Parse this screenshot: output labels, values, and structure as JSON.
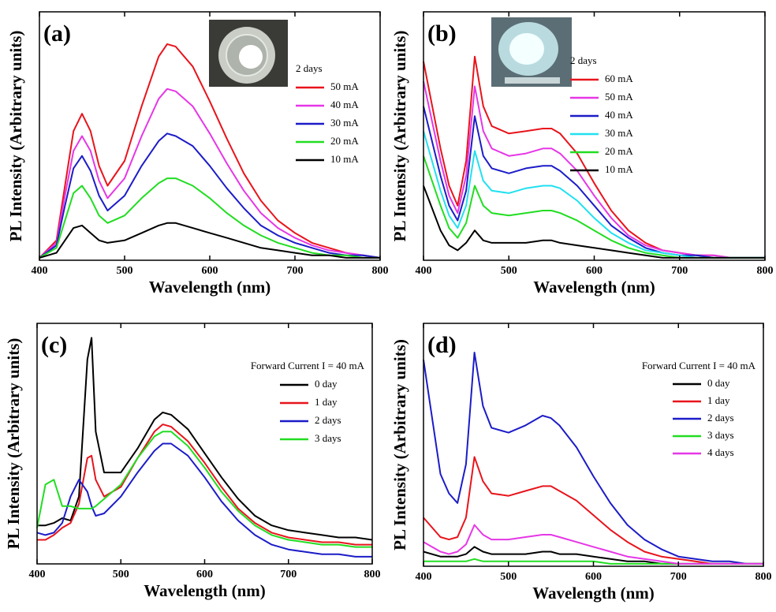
{
  "chart_data": [
    {
      "type": "line",
      "label": "(a)",
      "xlabel": "Wavelength (nm)",
      "ylabel": "PL Intensity (Arbitrary units)",
      "legend_title": "2 days",
      "x": [
        400,
        420,
        430,
        440,
        450,
        460,
        470,
        480,
        500,
        520,
        540,
        550,
        560,
        580,
        600,
        620,
        640,
        660,
        680,
        700,
        720,
        740,
        760,
        780,
        800
      ],
      "xlim": [
        400,
        800
      ],
      "xticks": [
        400,
        500,
        600,
        700,
        800
      ],
      "ylim": [
        0,
        1
      ],
      "series": [
        {
          "name": "50 mA",
          "color": "#e8141c",
          "values": [
            0.01,
            0.08,
            0.3,
            0.52,
            0.59,
            0.52,
            0.38,
            0.3,
            0.4,
            0.62,
            0.82,
            0.87,
            0.86,
            0.78,
            0.64,
            0.49,
            0.35,
            0.24,
            0.16,
            0.11,
            0.07,
            0.05,
            0.03,
            0.02,
            0.01
          ]
        },
        {
          "name": "40 mA",
          "color": "#e637e6",
          "values": [
            0.01,
            0.07,
            0.26,
            0.44,
            0.5,
            0.44,
            0.32,
            0.25,
            0.33,
            0.5,
            0.65,
            0.69,
            0.68,
            0.62,
            0.51,
            0.39,
            0.28,
            0.19,
            0.13,
            0.09,
            0.06,
            0.04,
            0.03,
            0.02,
            0.01
          ]
        },
        {
          "name": "30 mA",
          "color": "#1c1cc8",
          "values": [
            0.01,
            0.06,
            0.22,
            0.37,
            0.42,
            0.36,
            0.26,
            0.2,
            0.26,
            0.38,
            0.48,
            0.51,
            0.5,
            0.46,
            0.38,
            0.29,
            0.21,
            0.14,
            0.1,
            0.07,
            0.05,
            0.03,
            0.02,
            0.02,
            0.01
          ]
        },
        {
          "name": "20 mA",
          "color": "#22dd22",
          "values": [
            0.01,
            0.05,
            0.16,
            0.27,
            0.3,
            0.25,
            0.18,
            0.15,
            0.18,
            0.25,
            0.31,
            0.33,
            0.33,
            0.3,
            0.25,
            0.19,
            0.14,
            0.1,
            0.07,
            0.05,
            0.03,
            0.02,
            0.02,
            0.01,
            0.01
          ]
        },
        {
          "name": "10 mA",
          "color": "#000000",
          "values": [
            0.01,
            0.03,
            0.08,
            0.13,
            0.14,
            0.11,
            0.08,
            0.07,
            0.08,
            0.11,
            0.14,
            0.15,
            0.15,
            0.13,
            0.11,
            0.09,
            0.07,
            0.05,
            0.04,
            0.03,
            0.02,
            0.02,
            0.01,
            0.01,
            0.01
          ]
        }
      ]
    },
    {
      "type": "line",
      "label": "(b)",
      "xlabel": "Wavelength (nm)",
      "ylabel": "PL Intensity (Arbitrary units)",
      "legend_title": "2 days",
      "x": [
        400,
        420,
        430,
        440,
        450,
        460,
        470,
        480,
        500,
        520,
        540,
        550,
        560,
        580,
        600,
        620,
        640,
        660,
        680,
        700,
        720,
        740,
        760,
        780,
        800
      ],
      "xlim": [
        400,
        800
      ],
      "xticks": [
        400,
        500,
        600,
        700,
        800
      ],
      "ylim": [
        0,
        1
      ],
      "series": [
        {
          "name": "60 mA",
          "color": "#e8141c",
          "values": [
            0.8,
            0.45,
            0.3,
            0.22,
            0.4,
            0.82,
            0.62,
            0.54,
            0.51,
            0.52,
            0.53,
            0.53,
            0.51,
            0.43,
            0.31,
            0.2,
            0.12,
            0.07,
            0.04,
            0.03,
            0.02,
            0.02,
            0.01,
            0.01,
            0.01
          ]
        },
        {
          "name": "50 mA",
          "color": "#e637e6",
          "values": [
            0.72,
            0.4,
            0.26,
            0.19,
            0.34,
            0.7,
            0.52,
            0.45,
            0.42,
            0.43,
            0.45,
            0.45,
            0.43,
            0.36,
            0.26,
            0.17,
            0.1,
            0.06,
            0.04,
            0.03,
            0.02,
            0.02,
            0.01,
            0.01,
            0.01
          ]
        },
        {
          "name": "40 mA",
          "color": "#1c1cc8",
          "values": [
            0.62,
            0.34,
            0.22,
            0.16,
            0.28,
            0.58,
            0.42,
            0.37,
            0.35,
            0.37,
            0.38,
            0.38,
            0.36,
            0.3,
            0.22,
            0.14,
            0.09,
            0.05,
            0.03,
            0.02,
            0.02,
            0.01,
            0.01,
            0.01,
            0.01
          ]
        },
        {
          "name": "30 mA",
          "color": "#22e0f0",
          "values": [
            0.52,
            0.28,
            0.18,
            0.13,
            0.22,
            0.44,
            0.32,
            0.28,
            0.27,
            0.29,
            0.3,
            0.3,
            0.29,
            0.24,
            0.17,
            0.11,
            0.07,
            0.04,
            0.03,
            0.02,
            0.01,
            0.01,
            0.01,
            0.01,
            0.01
          ]
        },
        {
          "name": "20 mA",
          "color": "#22dd22",
          "values": [
            0.42,
            0.22,
            0.13,
            0.09,
            0.15,
            0.3,
            0.22,
            0.19,
            0.18,
            0.19,
            0.2,
            0.2,
            0.19,
            0.16,
            0.12,
            0.08,
            0.05,
            0.03,
            0.02,
            0.01,
            0.01,
            0.01,
            0.01,
            0.01,
            0.01
          ]
        },
        {
          "name": "10 mA",
          "color": "#000000",
          "values": [
            0.3,
            0.12,
            0.06,
            0.04,
            0.07,
            0.12,
            0.08,
            0.07,
            0.07,
            0.07,
            0.08,
            0.08,
            0.07,
            0.06,
            0.05,
            0.04,
            0.03,
            0.02,
            0.01,
            0.01,
            0.01,
            0.01,
            0.01,
            0.01,
            0.01
          ]
        }
      ]
    },
    {
      "type": "line",
      "label": "(c)",
      "xlabel": "Wavelength (nm)",
      "ylabel": "PL Intensity (Arbitrary units)",
      "legend_title": "Forward Current I = 40 mA",
      "x": [
        400,
        410,
        420,
        430,
        440,
        450,
        460,
        465,
        470,
        480,
        500,
        520,
        540,
        550,
        560,
        580,
        600,
        620,
        640,
        660,
        680,
        700,
        720,
        740,
        760,
        780,
        800
      ],
      "xlim": [
        400,
        800
      ],
      "xticks": [
        400,
        500,
        600,
        700,
        800
      ],
      "ylim": [
        0,
        1
      ],
      "series": [
        {
          "name": "0 day",
          "color": "#000000",
          "values": [
            0.16,
            0.16,
            0.17,
            0.19,
            0.18,
            0.28,
            0.85,
            0.94,
            0.55,
            0.38,
            0.38,
            0.48,
            0.6,
            0.63,
            0.62,
            0.56,
            0.46,
            0.36,
            0.27,
            0.2,
            0.16,
            0.14,
            0.13,
            0.12,
            0.11,
            0.11,
            0.1
          ]
        },
        {
          "name": "1 day",
          "color": "#e8141c",
          "values": [
            0.1,
            0.1,
            0.12,
            0.15,
            0.17,
            0.25,
            0.44,
            0.45,
            0.35,
            0.28,
            0.32,
            0.44,
            0.55,
            0.58,
            0.57,
            0.51,
            0.42,
            0.32,
            0.23,
            0.17,
            0.13,
            0.11,
            0.1,
            0.09,
            0.09,
            0.08,
            0.08
          ]
        },
        {
          "name": "2 days",
          "color": "#1c1cc8",
          "values": [
            0.13,
            0.12,
            0.13,
            0.17,
            0.28,
            0.35,
            0.3,
            0.24,
            0.2,
            0.21,
            0.28,
            0.38,
            0.47,
            0.5,
            0.5,
            0.45,
            0.36,
            0.26,
            0.18,
            0.12,
            0.08,
            0.06,
            0.05,
            0.04,
            0.04,
            0.03,
            0.03
          ]
        },
        {
          "name": "3 days",
          "color": "#22dd22",
          "values": [
            0.15,
            0.33,
            0.35,
            0.24,
            0.24,
            0.23,
            0.23,
            0.23,
            0.24,
            0.27,
            0.33,
            0.44,
            0.53,
            0.55,
            0.55,
            0.49,
            0.4,
            0.3,
            0.22,
            0.16,
            0.12,
            0.1,
            0.09,
            0.08,
            0.08,
            0.07,
            0.07
          ]
        }
      ]
    },
    {
      "type": "line",
      "label": "(d)",
      "xlabel": "Wavelength (nm)",
      "ylabel": "PL Intensity (Arbitrary units)",
      "legend_title": "Forward Current I = 40 mA",
      "x": [
        400,
        420,
        430,
        440,
        450,
        460,
        470,
        480,
        500,
        520,
        540,
        550,
        560,
        580,
        600,
        620,
        640,
        660,
        680,
        700,
        720,
        740,
        760,
        780,
        800
      ],
      "xlim": [
        400,
        800
      ],
      "xticks": [
        400,
        500,
        600,
        700,
        800
      ],
      "ylim": [
        0,
        1
      ],
      "series": [
        {
          "name": "0 day",
          "color": "#000000",
          "values": [
            0.06,
            0.04,
            0.04,
            0.04,
            0.05,
            0.08,
            0.06,
            0.05,
            0.05,
            0.05,
            0.06,
            0.06,
            0.05,
            0.05,
            0.04,
            0.03,
            0.02,
            0.02,
            0.01,
            0.01,
            0.01,
            0.01,
            0.01,
            0.01,
            0.01
          ]
        },
        {
          "name": "1 day",
          "color": "#e8141c",
          "values": [
            0.2,
            0.12,
            0.11,
            0.12,
            0.2,
            0.45,
            0.35,
            0.3,
            0.29,
            0.31,
            0.33,
            0.33,
            0.31,
            0.27,
            0.21,
            0.15,
            0.1,
            0.06,
            0.04,
            0.03,
            0.02,
            0.01,
            0.01,
            0.01,
            0.01
          ]
        },
        {
          "name": "2 days",
          "color": "#1c1cc8",
          "values": [
            0.85,
            0.38,
            0.3,
            0.26,
            0.42,
            0.88,
            0.66,
            0.57,
            0.55,
            0.58,
            0.62,
            0.61,
            0.58,
            0.49,
            0.37,
            0.26,
            0.17,
            0.11,
            0.07,
            0.04,
            0.03,
            0.02,
            0.02,
            0.01,
            0.01
          ]
        },
        {
          "name": "3 days",
          "color": "#22dd22",
          "values": [
            0.02,
            0.02,
            0.02,
            0.02,
            0.02,
            0.03,
            0.02,
            0.02,
            0.02,
            0.02,
            0.02,
            0.02,
            0.02,
            0.02,
            0.02,
            0.01,
            0.01,
            0.01,
            0.01,
            0.01,
            0.01,
            0.01,
            0.01,
            0.01,
            0.01
          ]
        },
        {
          "name": "4 days",
          "color": "#e637e6",
          "values": [
            0.1,
            0.06,
            0.05,
            0.06,
            0.09,
            0.17,
            0.13,
            0.11,
            0.11,
            0.12,
            0.13,
            0.13,
            0.12,
            0.1,
            0.08,
            0.06,
            0.04,
            0.03,
            0.02,
            0.01,
            0.01,
            0.01,
            0.01,
            0.01,
            0.01
          ]
        }
      ]
    }
  ]
}
